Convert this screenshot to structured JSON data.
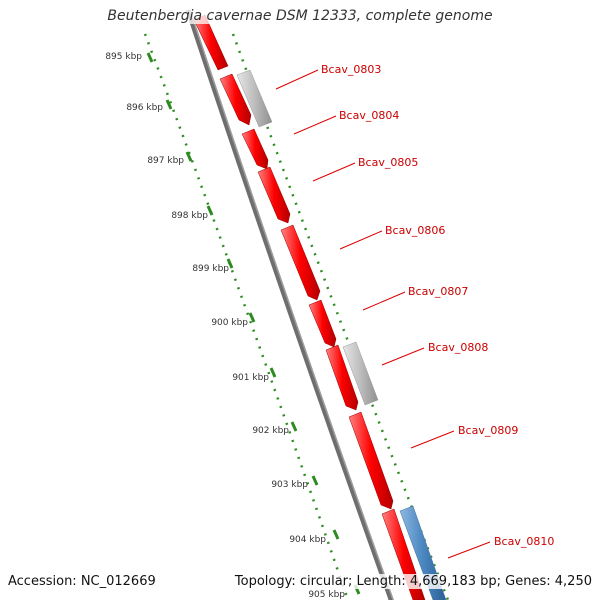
{
  "title": "Beutenbergia cavernae DSM 12333, complete genome",
  "accession_text": "Accession: NC_012669",
  "summary_text": "Topology: circular; Length: 4,669,183 bp; Genes: 4,250",
  "ticks": [
    "895 kbp",
    "896 kbp",
    "897 kbp",
    "898 kbp",
    "899 kbp",
    "900 kbp",
    "901 kbp",
    "902 kbp",
    "903 kbp",
    "904 kbp",
    "905 kbp"
  ],
  "genes": [
    "Bcav_0803",
    "Bcav_0804",
    "Bcav_0805",
    "Bcav_0806",
    "Bcav_0807",
    "Bcav_0808",
    "Bcav_0809",
    "Bcav_0810"
  ],
  "colors": {
    "cds": "#ff0000",
    "gene_gray": "#bbbbbb",
    "gene_blue": "#4a86c0",
    "backbone": "#777777",
    "scale": "#2e8b22",
    "label": "#cc0000"
  }
}
